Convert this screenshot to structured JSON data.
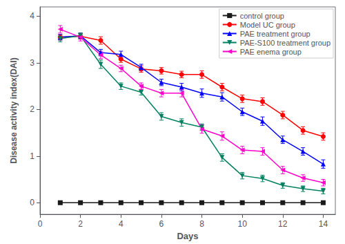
{
  "chart_data": {
    "type": "line",
    "xlabel": "Days",
    "ylabel": "Disease activity index(DAI)",
    "x": [
      1,
      2,
      3,
      4,
      5,
      6,
      7,
      8,
      9,
      10,
      11,
      12,
      13,
      14
    ],
    "series": [
      {
        "name": "control group",
        "color": "#1a1a1a",
        "marker": "square",
        "values": [
          0,
          0,
          0,
          0,
          0,
          0,
          0,
          0,
          0,
          0,
          0,
          0,
          0,
          0
        ],
        "errors": [
          0.02,
          0.02,
          0.02,
          0.02,
          0.02,
          0.02,
          0.02,
          0.02,
          0.02,
          0.02,
          0.02,
          0.02,
          0.02,
          0.02
        ]
      },
      {
        "name": "Model UC group",
        "color": "#ff0000",
        "marker": "circle",
        "values": [
          3.55,
          3.57,
          3.48,
          3.08,
          2.87,
          2.83,
          2.75,
          2.75,
          2.48,
          2.23,
          2.17,
          1.88,
          1.55,
          1.42
        ],
        "errors": [
          0.06,
          0.06,
          0.08,
          0.07,
          0.07,
          0.07,
          0.07,
          0.08,
          0.08,
          0.08,
          0.08,
          0.08,
          0.08,
          0.08
        ]
      },
      {
        "name": "PAE treatment group",
        "color": "#0000ff",
        "marker": "triangle-up",
        "values": [
          3.55,
          3.58,
          3.22,
          3.18,
          2.9,
          2.58,
          2.48,
          2.35,
          2.27,
          1.95,
          1.75,
          1.35,
          1.1,
          0.83
        ],
        "errors": [
          0.06,
          0.06,
          0.07,
          0.07,
          0.07,
          0.07,
          0.08,
          0.09,
          0.09,
          0.08,
          0.09,
          0.08,
          0.08,
          0.09
        ]
      },
      {
        "name": "PAE-S100 treatment group",
        "color": "#008060",
        "marker": "triangle-down",
        "values": [
          3.52,
          3.58,
          2.97,
          2.5,
          2.37,
          1.85,
          1.72,
          1.62,
          0.97,
          0.58,
          0.52,
          0.37,
          0.3,
          0.25
        ],
        "errors": [
          0.07,
          0.06,
          0.09,
          0.07,
          0.06,
          0.08,
          0.08,
          0.07,
          0.08,
          0.07,
          0.07,
          0.06,
          0.06,
          0.06
        ]
      },
      {
        "name": "PAE enema group",
        "color": "#ff00cc",
        "marker": "triangle-left",
        "values": [
          3.72,
          3.55,
          3.17,
          2.88,
          2.5,
          2.35,
          2.35,
          1.58,
          1.43,
          1.13,
          1.1,
          0.7,
          0.53,
          0.43
        ],
        "errors": [
          0.08,
          0.08,
          0.08,
          0.07,
          0.07,
          0.08,
          0.08,
          0.09,
          0.09,
          0.08,
          0.08,
          0.08,
          0.07,
          0.07
        ]
      }
    ],
    "xlim": [
      0,
      14.6
    ],
    "ylim": [
      -0.25,
      4.2
    ],
    "xticks": [
      0,
      2,
      4,
      6,
      8,
      10,
      12,
      14
    ],
    "yticks": [
      0,
      1,
      2,
      3,
      4
    ],
    "grid": false,
    "legend": "upper right"
  }
}
